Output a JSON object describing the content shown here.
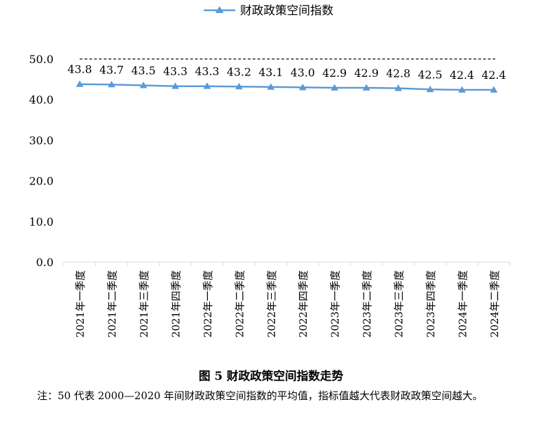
{
  "chart_data": {
    "type": "line",
    "categories": [
      "2021年一季度",
      "2021年二季度",
      "2021年三季度",
      "2021年四季度",
      "2022年一季度",
      "2022年二季度",
      "2022年三季度",
      "2022年四季度",
      "2023年一季度",
      "2023年二季度",
      "2023年三季度",
      "2023年四季度",
      "2024年一季度",
      "2024年二季度"
    ],
    "series": [
      {
        "name": "财政政策空间指数",
        "values": [
          43.8,
          43.7,
          43.5,
          43.3,
          43.3,
          43.2,
          43.1,
          43.0,
          42.9,
          42.9,
          42.8,
          42.5,
          42.4,
          42.4
        ],
        "labels": [
          "43.8",
          "43.7",
          "43.5",
          "43.3",
          "43.3",
          "43.2",
          "43.1",
          "43.0",
          "42.9",
          "42.9",
          "42.8",
          "42.5",
          "42.4",
          "42.4"
        ]
      }
    ],
    "reference_line": 50,
    "ylim": [
      0,
      50
    ],
    "yticks": [
      "0.0",
      "10.0",
      "20.0",
      "30.0",
      "40.0",
      "50.0"
    ],
    "legend_position": "top",
    "grid": false,
    "colors": {
      "series": "#5b9bd5",
      "reference": "#000000"
    }
  },
  "caption": "图 5  财政政策空间指数走势",
  "note": "注：50 代表 2000—2020 年间财政政策空间指数的平均值，指标值越大代表财政政策空间越大。"
}
